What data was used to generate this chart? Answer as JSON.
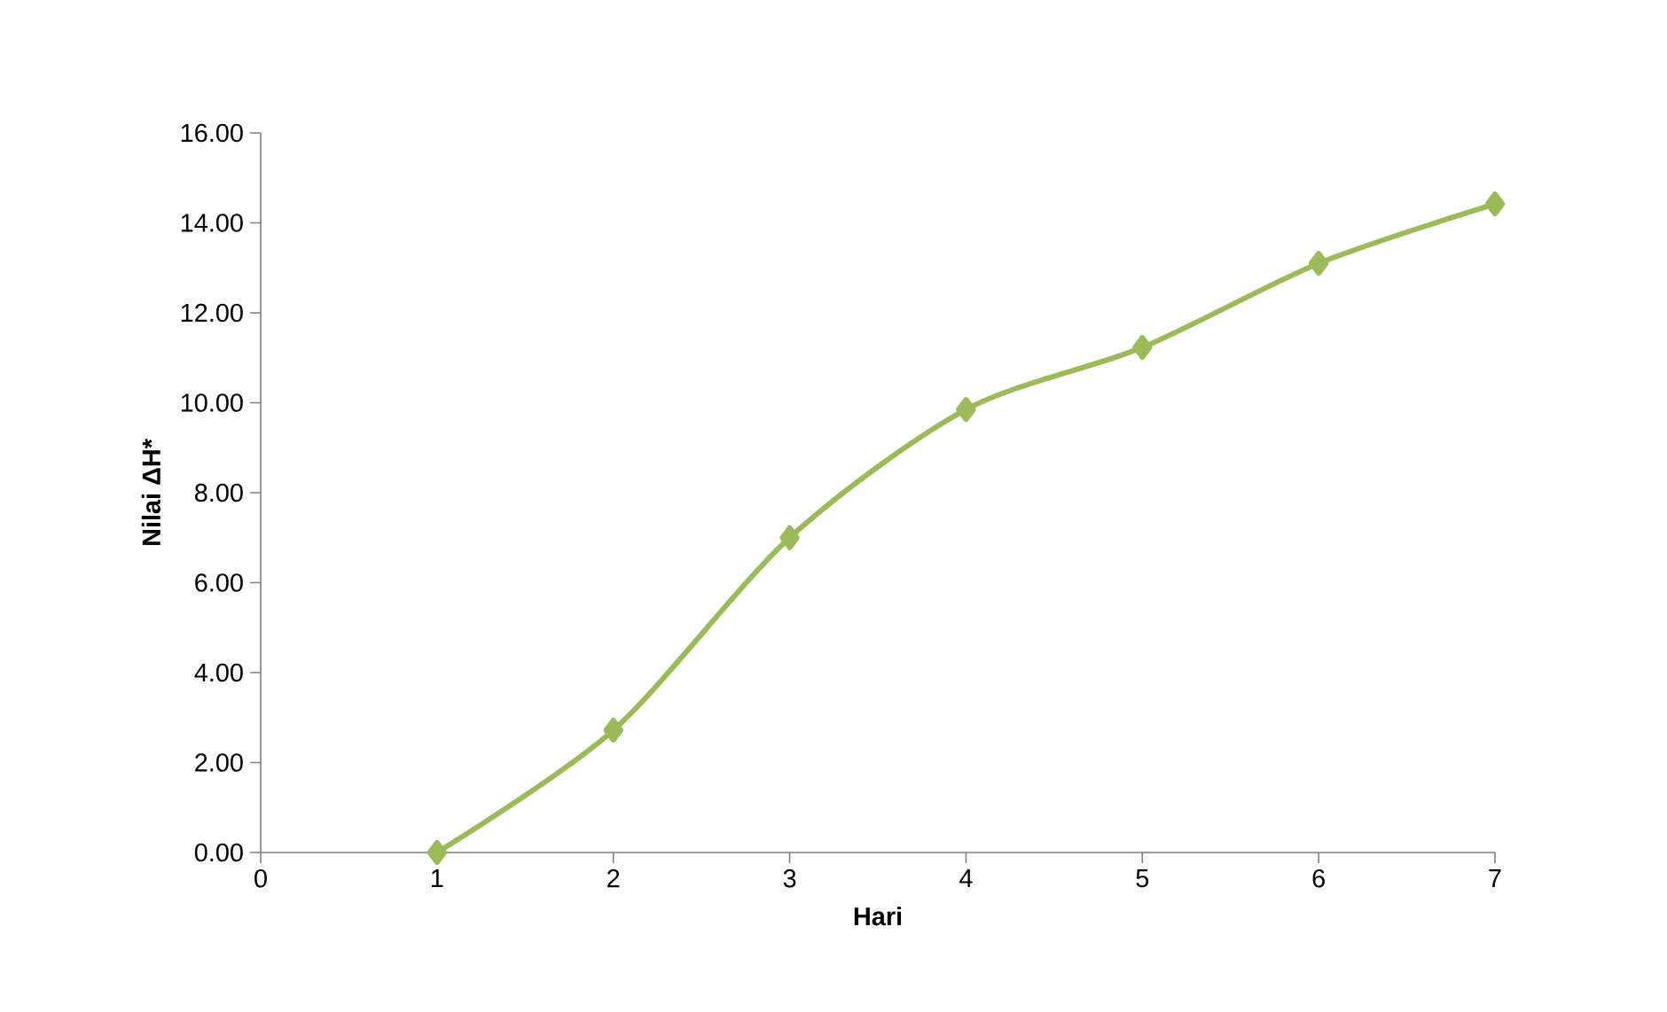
{
  "chart_data": {
    "type": "line",
    "xlabel": "Hari",
    "ylabel": "Nilai ΔH*",
    "x": [
      1,
      2,
      3,
      4,
      5,
      6,
      7
    ],
    "series": [
      {
        "color": "#9bbb59",
        "values": [
          0,
          2.72,
          7.0,
          9.85,
          11.23,
          13.1,
          14.42
        ]
      }
    ],
    "xlim": [
      0,
      7
    ],
    "xticks": [
      0,
      1,
      2,
      3,
      4,
      5,
      6,
      7
    ],
    "ylim": [
      0,
      16
    ],
    "yticks": [
      {
        "value": 0,
        "label": "0.00"
      },
      {
        "value": 2,
        "label": "2.00"
      },
      {
        "value": 4,
        "label": "4.00"
      },
      {
        "value": 6,
        "label": "6.00"
      },
      {
        "value": 8,
        "label": "8.00"
      },
      {
        "value": 10,
        "label": "10.00"
      },
      {
        "value": 12,
        "label": "12.00"
      },
      {
        "value": 14,
        "label": "14.00"
      },
      {
        "value": 16,
        "label": "16.00"
      }
    ],
    "marker": "diamond",
    "line_style": "solid",
    "grid": false
  }
}
